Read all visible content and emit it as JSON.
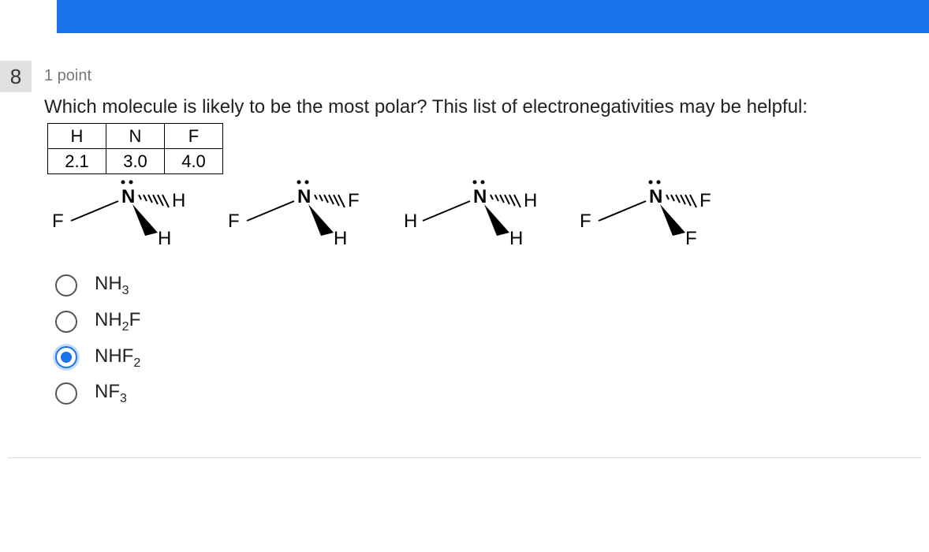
{
  "topbar": {
    "color": "#1a73e8"
  },
  "question": {
    "number": "8",
    "points": "1 point",
    "prompt": "Which molecule is likely to be the most polar? This list of electronegativities may be helpful:"
  },
  "en_table": {
    "headers": [
      "H",
      "N",
      "F"
    ],
    "values": [
      "2.1",
      "3.0",
      "4.0"
    ]
  },
  "molecules": [
    {
      "left": "F",
      "rightBack": "H",
      "rightFront": "H"
    },
    {
      "left": "F",
      "rightBack": "F",
      "rightFront": "H"
    },
    {
      "left": "H",
      "rightBack": "H",
      "rightFront": "H"
    },
    {
      "left": "F",
      "rightBack": "F",
      "rightFront": "F"
    }
  ],
  "options": [
    {
      "base": "NH",
      "sub": "3",
      "selected": false
    },
    {
      "base": "NH",
      "sub": "2",
      "tail": "F",
      "selected": false
    },
    {
      "base": "NHF",
      "sub": "2",
      "selected": true
    },
    {
      "base": "NF",
      "sub": "3",
      "selected": false
    }
  ]
}
